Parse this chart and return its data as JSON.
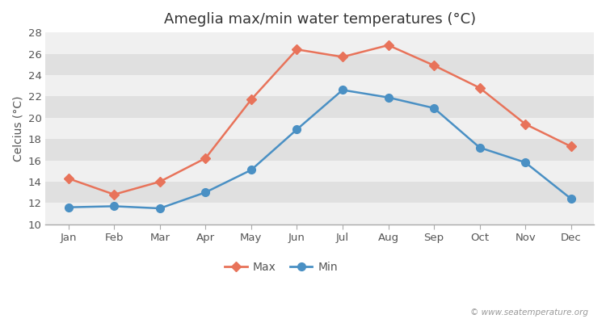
{
  "title": "Ameglia max/min water temperatures (°C)",
  "ylabel": "Celcius (°C)",
  "months": [
    "Jan",
    "Feb",
    "Mar",
    "Apr",
    "May",
    "Jun",
    "Jul",
    "Aug",
    "Sep",
    "Oct",
    "Nov",
    "Dec"
  ],
  "max_values": [
    14.3,
    12.8,
    14.0,
    16.2,
    21.7,
    26.4,
    25.7,
    26.8,
    24.9,
    22.8,
    19.4,
    17.3
  ],
  "min_values": [
    11.6,
    11.7,
    11.5,
    13.0,
    15.1,
    18.9,
    22.6,
    21.9,
    20.9,
    17.2,
    15.8,
    12.4
  ],
  "max_color": "#e8735a",
  "min_color": "#4a90c4",
  "background_color": "#ffffff",
  "plot_bg_color": "#ffffff",
  "band_color_light": "#f0f0f0",
  "band_color_dark": "#e0e0e0",
  "ylim": [
    10,
    28
  ],
  "yticks": [
    10,
    12,
    14,
    16,
    18,
    20,
    22,
    24,
    26,
    28
  ],
  "legend_labels": [
    "Max",
    "Min"
  ],
  "watermark": "© www.seatemperature.org",
  "title_fontsize": 13,
  "label_fontsize": 10,
  "tick_fontsize": 9.5,
  "legend_fontsize": 10,
  "linewidth": 1.8,
  "markersize": 6
}
